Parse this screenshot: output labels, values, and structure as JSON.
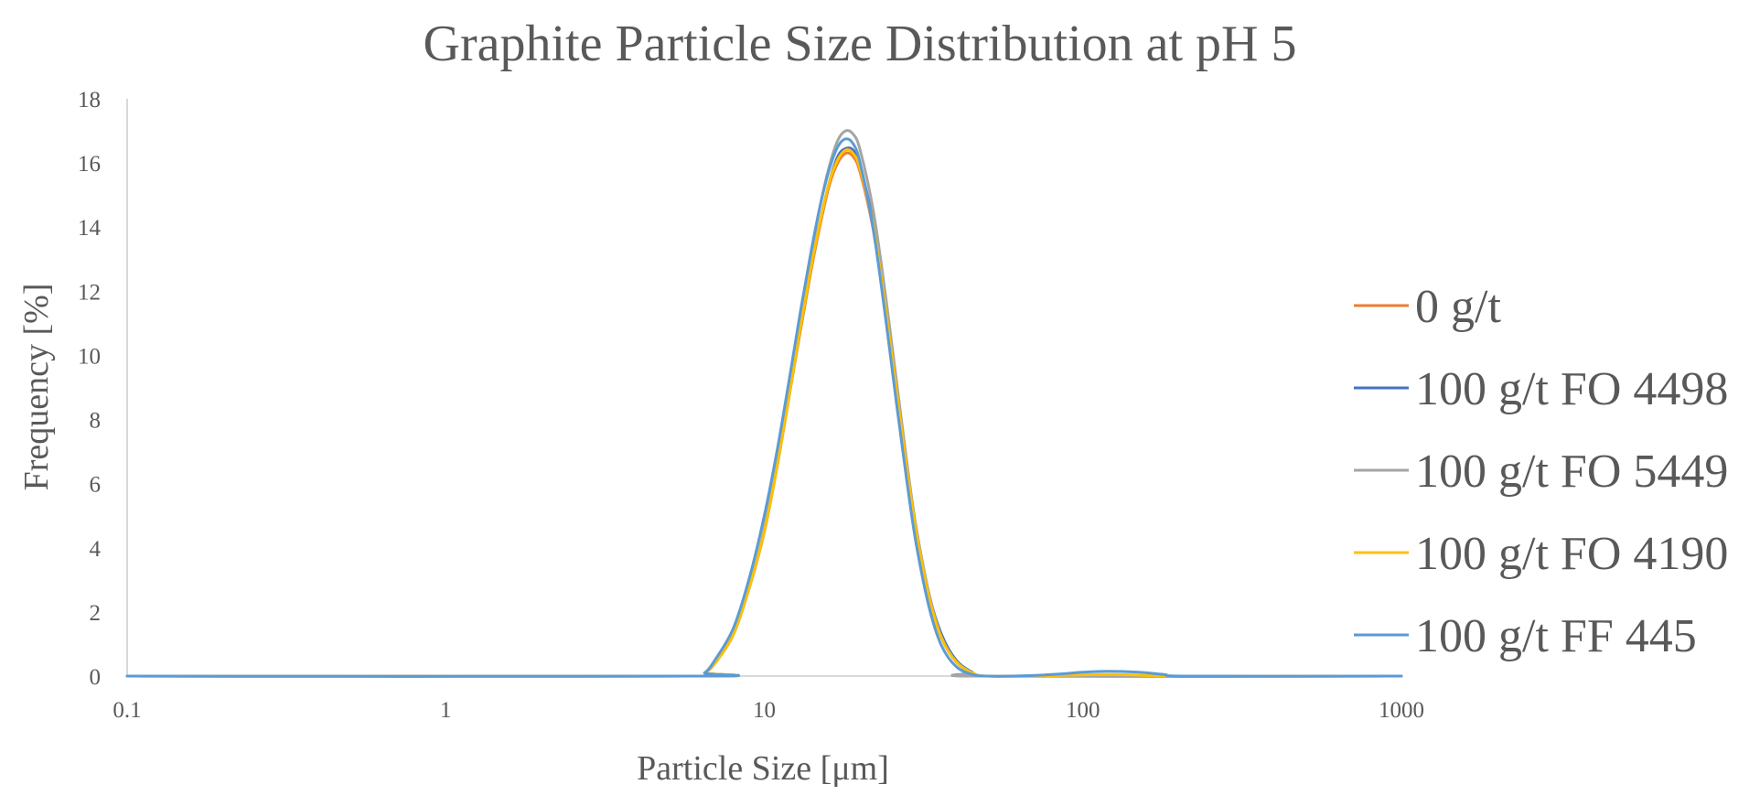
{
  "chart_data": {
    "type": "line",
    "title": "Graphite Particle Size Distribution at pH 5",
    "xlabel": "Particle Size [μm]",
    "ylabel": "Frequency [%]",
    "x_scale": "log",
    "xlim": [
      0.1,
      1000
    ],
    "ylim": [
      0,
      18
    ],
    "x_ticks": [
      "0.1",
      "1",
      "10",
      "100",
      "1000"
    ],
    "y_ticks": [
      "0",
      "2",
      "4",
      "6",
      "8",
      "10",
      "12",
      "14",
      "16",
      "18"
    ],
    "grid": false,
    "legend_position": "right",
    "series": [
      {
        "name": "0 g/t",
        "color": "#ED7D31",
        "points": [
          [
            0.1,
            0
          ],
          [
            6,
            0
          ],
          [
            6.5,
            0.1
          ],
          [
            7,
            0.4
          ],
          [
            8,
            1.3
          ],
          [
            9,
            2.8
          ],
          [
            10,
            4.5
          ],
          [
            11,
            6.6
          ],
          [
            12,
            8.8
          ],
          [
            13,
            10.8
          ],
          [
            14,
            12.6
          ],
          [
            15,
            14.1
          ],
          [
            16,
            15.3
          ],
          [
            17,
            16.0
          ],
          [
            18,
            16.3
          ],
          [
            19,
            16.2
          ],
          [
            20,
            15.7
          ],
          [
            22,
            13.9
          ],
          [
            24,
            11.4
          ],
          [
            26,
            8.8
          ],
          [
            28,
            6.4
          ],
          [
            30,
            4.4
          ],
          [
            33,
            2.4
          ],
          [
            36,
            1.2
          ],
          [
            40,
            0.45
          ],
          [
            45,
            0.1
          ],
          [
            50,
            0
          ],
          [
            1000,
            0
          ]
        ]
      },
      {
        "name": "100 g/t FO 4498",
        "color": "#4472C4",
        "points": [
          [
            0.1,
            0
          ],
          [
            6,
            0
          ],
          [
            6.5,
            0.1
          ],
          [
            7,
            0.4
          ],
          [
            8,
            1.3
          ],
          [
            9,
            2.8
          ],
          [
            10,
            4.5
          ],
          [
            11,
            6.6
          ],
          [
            12,
            8.8
          ],
          [
            13,
            10.9
          ],
          [
            14,
            12.7
          ],
          [
            15,
            14.2
          ],
          [
            16,
            15.4
          ],
          [
            17,
            16.2
          ],
          [
            18,
            16.45
          ],
          [
            19,
            16.4
          ],
          [
            20,
            15.9
          ],
          [
            22,
            14.1
          ],
          [
            24,
            11.6
          ],
          [
            26,
            9.0
          ],
          [
            28,
            6.6
          ],
          [
            30,
            4.6
          ],
          [
            33,
            2.5
          ],
          [
            36,
            1.3
          ],
          [
            40,
            0.5
          ],
          [
            45,
            0.12
          ],
          [
            50,
            0
          ],
          [
            1000,
            0
          ]
        ]
      },
      {
        "name": "100 g/t FO 5449",
        "color": "#A5A5A5",
        "points": [
          [
            0.1,
            0
          ],
          [
            6,
            0
          ],
          [
            6.5,
            0.1
          ],
          [
            7,
            0.4
          ],
          [
            8,
            1.3
          ],
          [
            9,
            2.8
          ],
          [
            10,
            4.6
          ],
          [
            11,
            6.8
          ],
          [
            12,
            9.0
          ],
          [
            13,
            11.2
          ],
          [
            14,
            13.1
          ],
          [
            15,
            14.7
          ],
          [
            16,
            15.9
          ],
          [
            17,
            16.7
          ],
          [
            18,
            17.0
          ],
          [
            19,
            16.9
          ],
          [
            20,
            16.4
          ],
          [
            22,
            14.5
          ],
          [
            24,
            11.9
          ],
          [
            26,
            9.2
          ],
          [
            28,
            6.7
          ],
          [
            30,
            4.6
          ],
          [
            33,
            2.5
          ],
          [
            36,
            1.2
          ],
          [
            40,
            0.45
          ],
          [
            45,
            0.1
          ],
          [
            50,
            0
          ],
          [
            1000,
            0
          ]
        ]
      },
      {
        "name": "100 g/t FO 4190",
        "color": "#FFC000",
        "points": [
          [
            0.1,
            0
          ],
          [
            6,
            0
          ],
          [
            6.5,
            0.1
          ],
          [
            7,
            0.4
          ],
          [
            8,
            1.3
          ],
          [
            9,
            2.8
          ],
          [
            10,
            4.5
          ],
          [
            11,
            6.6
          ],
          [
            12,
            8.8
          ],
          [
            13,
            10.9
          ],
          [
            14,
            12.7
          ],
          [
            15,
            14.2
          ],
          [
            16,
            15.4
          ],
          [
            17,
            16.1
          ],
          [
            18,
            16.4
          ],
          [
            19,
            16.3
          ],
          [
            20,
            15.8
          ],
          [
            22,
            14.0
          ],
          [
            24,
            11.5
          ],
          [
            26,
            8.9
          ],
          [
            28,
            6.5
          ],
          [
            30,
            4.5
          ],
          [
            33,
            2.4
          ],
          [
            36,
            1.2
          ],
          [
            40,
            0.45
          ],
          [
            45,
            0.1
          ],
          [
            50,
            0
          ],
          [
            70,
            0
          ],
          [
            90,
            0.03
          ],
          [
            120,
            0.05
          ],
          [
            150,
            0.03
          ],
          [
            200,
            0
          ],
          [
            1000,
            0
          ]
        ]
      },
      {
        "name": "100 g/t FF 445",
        "color": "#5B9BD5",
        "points": [
          [
            0.1,
            0
          ],
          [
            6,
            0
          ],
          [
            6.5,
            0.1
          ],
          [
            7,
            0.5
          ],
          [
            8,
            1.5
          ],
          [
            9,
            3.1
          ],
          [
            10,
            5.0
          ],
          [
            11,
            7.1
          ],
          [
            12,
            9.3
          ],
          [
            13,
            11.4
          ],
          [
            14,
            13.2
          ],
          [
            15,
            14.7
          ],
          [
            16,
            15.8
          ],
          [
            17,
            16.5
          ],
          [
            18,
            16.75
          ],
          [
            19,
            16.6
          ],
          [
            20,
            16.0
          ],
          [
            22,
            13.9
          ],
          [
            24,
            11.2
          ],
          [
            26,
            8.5
          ],
          [
            28,
            6.1
          ],
          [
            30,
            4.1
          ],
          [
            33,
            2.1
          ],
          [
            36,
            0.95
          ],
          [
            40,
            0.3
          ],
          [
            45,
            0.05
          ],
          [
            50,
            0
          ],
          [
            60,
            0
          ],
          [
            80,
            0.05
          ],
          [
            100,
            0.12
          ],
          [
            120,
            0.15
          ],
          [
            150,
            0.12
          ],
          [
            180,
            0.05
          ],
          [
            220,
            0
          ],
          [
            1000,
            0
          ]
        ]
      }
    ]
  }
}
